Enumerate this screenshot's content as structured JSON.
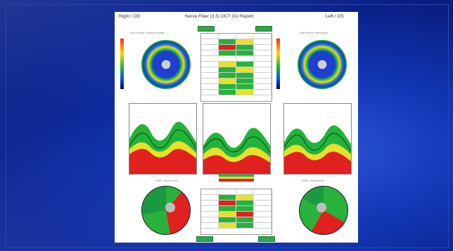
{
  "header": {
    "left": "Right / OD",
    "title": "Nerve Fiber (3.5) OCT OU Report",
    "right": "Left / OS"
  },
  "top_buttons": [
    "",
    ""
  ],
  "maps": {
    "od_title": "Disc Sector Thickness Map",
    "os_title": "Optic Nerve Head Map"
  },
  "sections": {
    "left_pie_title": "RNFL Sectors OD",
    "right_pie_title": "RNFL Sectors OS"
  },
  "colors": {
    "slide_bg": "#1236b4",
    "normal": "#28b23c",
    "borderline": "#e6e12a",
    "abnormal": "#e12020"
  }
}
